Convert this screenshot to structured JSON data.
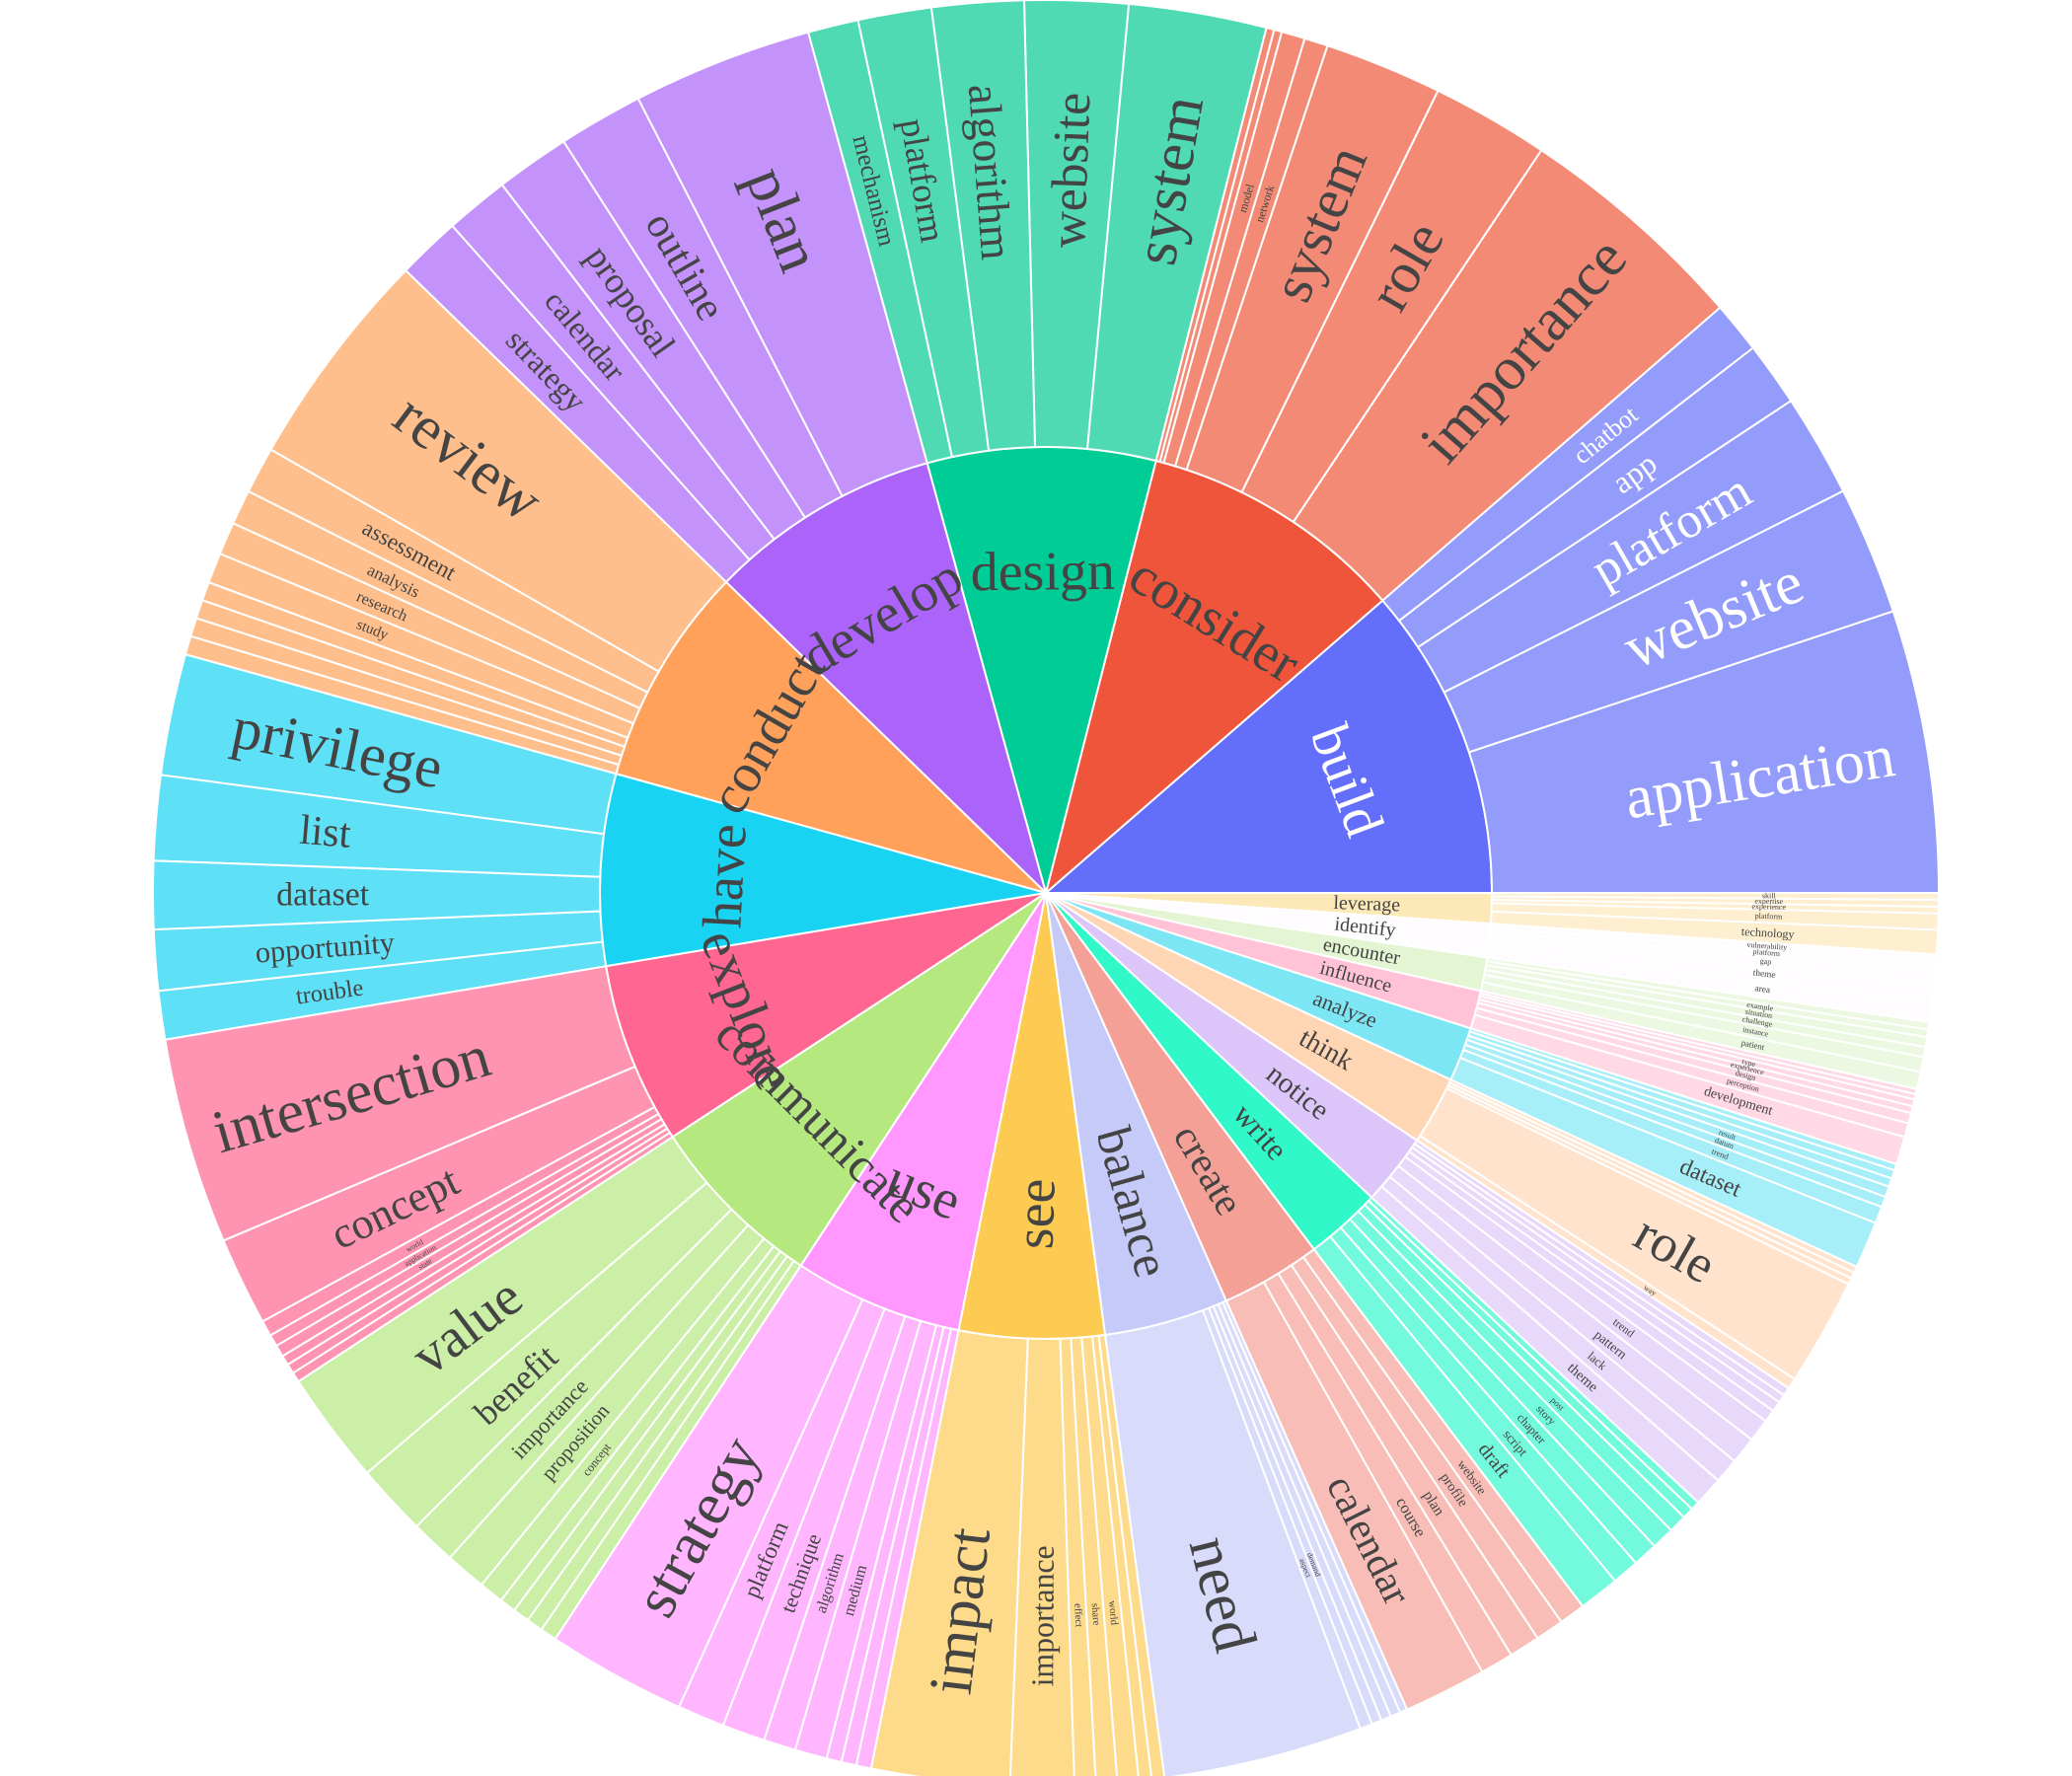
{
  "chart_data": {
    "type": "sunburst",
    "title": "",
    "verbs": [
      {
        "label": "build",
        "color": "#636efa",
        "light": "#939bfb",
        "textColor": "#ffffff",
        "children": [
          [
            "application",
            11
          ],
          [
            "website",
            5
          ],
          [
            "platform",
            4
          ],
          [
            "app",
            2.5
          ],
          [
            "chatbot",
            2
          ]
        ]
      },
      {
        "label": "consider",
        "color": "#ef553b",
        "light": "#f38a76",
        "textColor": "#444444",
        "children": [
          [
            "importance",
            12
          ],
          [
            "role",
            6
          ],
          [
            "system",
            6
          ],
          [
            "network",
            1.2
          ],
          [
            "model",
            1.2
          ],
          [
            "",
            0.4
          ],
          [
            "",
            0.4
          ]
        ]
      },
      {
        "label": "design",
        "color": "#00cc96",
        "light": "#4fdab4",
        "textColor": "#444444",
        "children": [
          [
            "system",
            6
          ],
          [
            "website",
            4.5
          ],
          [
            "algorithm",
            4
          ],
          [
            "platform",
            3.2
          ],
          [
            "mechanism",
            2.2
          ]
        ]
      },
      {
        "label": "develop",
        "color": "#ab63fa",
        "light": "#c393fb",
        "textColor": "#444444",
        "children": [
          [
            "plan",
            8.5
          ],
          [
            "outline",
            4
          ],
          [
            "proposal",
            3.5
          ],
          [
            "calendar",
            3
          ],
          [
            "strategy",
            3
          ]
        ]
      },
      {
        "label": "conduct",
        "color": "#ffa15a",
        "light": "#ffbf8c",
        "textColor": "#444444",
        "children": [
          [
            "review",
            9.5
          ],
          [
            "assessment",
            2
          ],
          [
            "analysis",
            1.5
          ],
          [
            "research",
            1.4
          ],
          [
            "study",
            1.3
          ],
          [
            "",
            0.8
          ],
          [
            "",
            0.8
          ],
          [
            "",
            0.8
          ],
          [
            "",
            0.8
          ]
        ]
      },
      {
        "label": "have",
        "color": "#19d3f3",
        "light": "#5ee0f6",
        "textColor": "#444444",
        "children": [
          [
            "privilege",
            5
          ],
          [
            "list",
            3.5
          ],
          [
            "dataset",
            2.8
          ],
          [
            "opportunity",
            2.5
          ],
          [
            "trouble",
            2
          ]
        ]
      },
      {
        "label": "explore",
        "color": "#ff6692",
        "light": "#ff94b2",
        "textColor": "#444444",
        "children": [
          [
            "intersection",
            10.5
          ],
          [
            "concept",
            4.5
          ],
          [
            "world",
            0.8
          ],
          [
            "application",
            0.6
          ],
          [
            "state",
            0.6
          ],
          [
            "",
            0.5
          ],
          [
            "",
            0.5
          ],
          [
            "",
            0.5
          ]
        ]
      },
      {
        "label": "communicate",
        "color": "#b6e880",
        "light": "#cbefa6",
        "textColor": "#444444",
        "children": [
          [
            "value",
            5.5
          ],
          [
            "benefit",
            3.5
          ],
          [
            "importance",
            2.2
          ],
          [
            "proposition",
            2
          ],
          [
            "concept",
            1.2
          ],
          [
            "",
            0.8
          ],
          [
            "",
            0.8
          ],
          [
            "",
            0.8
          ],
          [
            "",
            0.8
          ]
        ]
      },
      {
        "label": "use",
        "color": "#ff97ff",
        "light": "#ffb6ff",
        "textColor": "#444444",
        "children": [
          [
            "strategy",
            6.5
          ],
          [
            "platform",
            2.2
          ],
          [
            "technique",
            2
          ],
          [
            "algorithm",
            1.5
          ],
          [
            "medium",
            1.5
          ],
          [
            "",
            0.7
          ],
          [
            "",
            0.7
          ],
          [
            "",
            0.7
          ]
        ]
      },
      {
        "label": "see",
        "color": "#fecb52",
        "light": "#fedb8a",
        "textColor": "#444444",
        "children": [
          [
            "impact",
            6.5
          ],
          [
            "importance",
            3
          ],
          [
            "effect",
            1
          ],
          [
            "share",
            1
          ],
          [
            "world",
            1
          ],
          [
            "",
            0.6
          ],
          [
            "",
            0.6
          ]
        ]
      },
      {
        "label": "balance",
        "color": "#c6caf8",
        "light": "#d9dbfa",
        "textColor": "#444444",
        "children": [
          [
            "need",
            8
          ],
          [
            "aspect",
            0.5
          ],
          [
            "demand",
            0.4
          ],
          [
            "",
            0.4
          ],
          [
            "",
            0.4
          ],
          [
            "",
            0.3
          ]
        ]
      },
      {
        "label": "create",
        "color": "#f4a096",
        "light": "#f7bdb6",
        "textColor": "#444444",
        "children": [
          [
            "calendar",
            3.5
          ],
          [
            "course",
            1.4
          ],
          [
            "plan",
            1.3
          ],
          [
            "profile",
            1.2
          ],
          [
            "website",
            1.1
          ]
        ]
      },
      {
        "label": "write",
        "color": "#31f8c8",
        "light": "#73fadc",
        "textColor": "#444444",
        "children": [
          [
            "draft",
            1.8
          ],
          [
            "script",
            1.2
          ],
          [
            "chapter",
            1.1
          ],
          [
            "story",
            1
          ],
          [
            "post",
            0.8
          ],
          [
            "",
            0.5
          ],
          [
            "",
            0.4
          ]
        ]
      },
      {
        "label": "notice",
        "color": "#dcc6f9",
        "light": "#e8d9fb",
        "textColor": "#444444",
        "children": [
          [
            "theme",
            1.4
          ],
          [
            "lack",
            1.2
          ],
          [
            "pattern",
            1.3
          ],
          [
            "trend",
            1.1
          ],
          [
            "",
            0.6
          ],
          [
            "",
            0.5
          ],
          [
            "",
            0.4
          ],
          [
            "",
            0.4
          ]
        ]
      },
      {
        "label": "think",
        "color": "#ffd6b3",
        "light": "#ffe3cc",
        "textColor": "#444444",
        "children": [
          [
            "way",
            0.6
          ],
          [
            "role",
            6
          ],
          [
            "",
            0.35
          ],
          [
            "",
            0.35
          ],
          [
            "",
            0.35
          ]
        ]
      },
      {
        "label": "analyze",
        "color": "#7ce6f5",
        "light": "#a6eef8",
        "textColor": "#444444",
        "children": [
          [
            "dataset",
            2.2
          ],
          [
            "trend",
            0.8
          ],
          [
            "datum",
            0.5
          ],
          [
            "result",
            0.5
          ],
          [
            "",
            0.4
          ],
          [
            "",
            0.4
          ],
          [
            "",
            0.3
          ]
        ]
      },
      {
        "label": "influence",
        "color": "#ffc2d6",
        "light": "#ffd9e5",
        "textColor": "#444444",
        "children": [
          [
            "development",
            1.6
          ],
          [
            "perception",
            0.8
          ],
          [
            "design",
            0.6
          ],
          [
            "experience",
            0.4
          ],
          [
            "type",
            0.4
          ],
          [
            "",
            0.3
          ],
          [
            "",
            0.3
          ]
        ]
      },
      {
        "label": "encounter",
        "color": "#e3f5d3",
        "light": "#ecf8e1",
        "textColor": "#444444",
        "children": [
          [
            "patient",
            0.7
          ],
          [
            "instance",
            0.6
          ],
          [
            "challenge",
            0.4
          ],
          [
            "situation",
            0.4
          ],
          [
            "example",
            0.3
          ],
          [
            "",
            0.3
          ]
        ]
      },
      {
        "label": "identify",
        "color": "#fefcfe",
        "light": "#fefcfe",
        "textColor": "#444444",
        "children": [
          [
            "area",
            0.7
          ],
          [
            "theme",
            0.7
          ],
          [
            "gap",
            0.5
          ],
          [
            "platform",
            0.3
          ],
          [
            "vulnerability",
            0.3
          ]
        ]
      },
      {
        "label": "leverage",
        "color": "#fde8b8",
        "light": "#fdefcf",
        "textColor": "#444444",
        "children": [
          [
            "technology",
            0.9
          ],
          [
            "platform",
            0.6
          ],
          [
            "experience",
            0.25
          ],
          [
            "expertise",
            0.25
          ],
          [
            "skill",
            0.25
          ]
        ]
      }
    ],
    "sizes": [
      19.7,
      16.7,
      14.3,
      14.6,
      13.8,
      12.0,
      11.4,
      11.3,
      10.6,
      9.1,
      7.8,
      6.3,
      4.8,
      4.5,
      4.3,
      3.4,
      2.4,
      2.1,
      2.1,
      1.9
    ]
  }
}
